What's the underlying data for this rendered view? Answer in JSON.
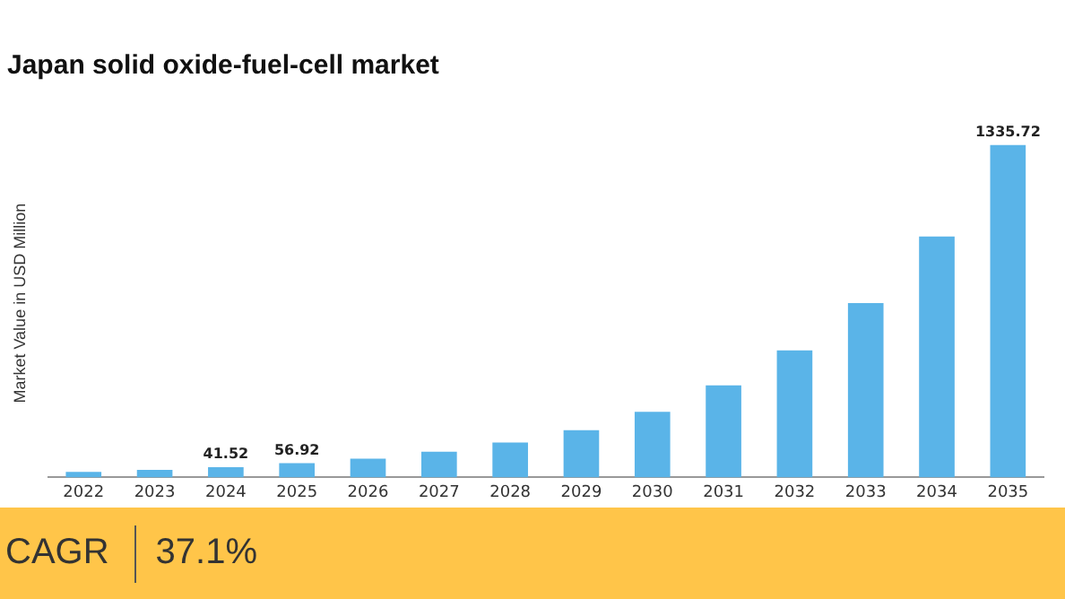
{
  "chart_data": {
    "type": "bar",
    "title": "Japan solid oxide-fuel-cell market",
    "ylabel": "Market Value in USD Million",
    "categories": [
      "2022",
      "2023",
      "2024",
      "2025",
      "2026",
      "2027",
      "2028",
      "2029",
      "2030",
      "2031",
      "2032",
      "2033",
      "2034",
      "2035"
    ],
    "values": [
      22,
      30,
      41.52,
      56.92,
      75,
      103,
      140,
      190,
      264,
      370,
      511,
      701,
      968,
      1335.72
    ],
    "value_labels": [
      null,
      null,
      "41.52",
      "56.92",
      null,
      null,
      null,
      null,
      null,
      null,
      null,
      null,
      null,
      "1335.72"
    ],
    "color": "#5ab4e8",
    "grid": false,
    "legend": false,
    "annotations": [
      "CAGR",
      "37.1%"
    ]
  }
}
